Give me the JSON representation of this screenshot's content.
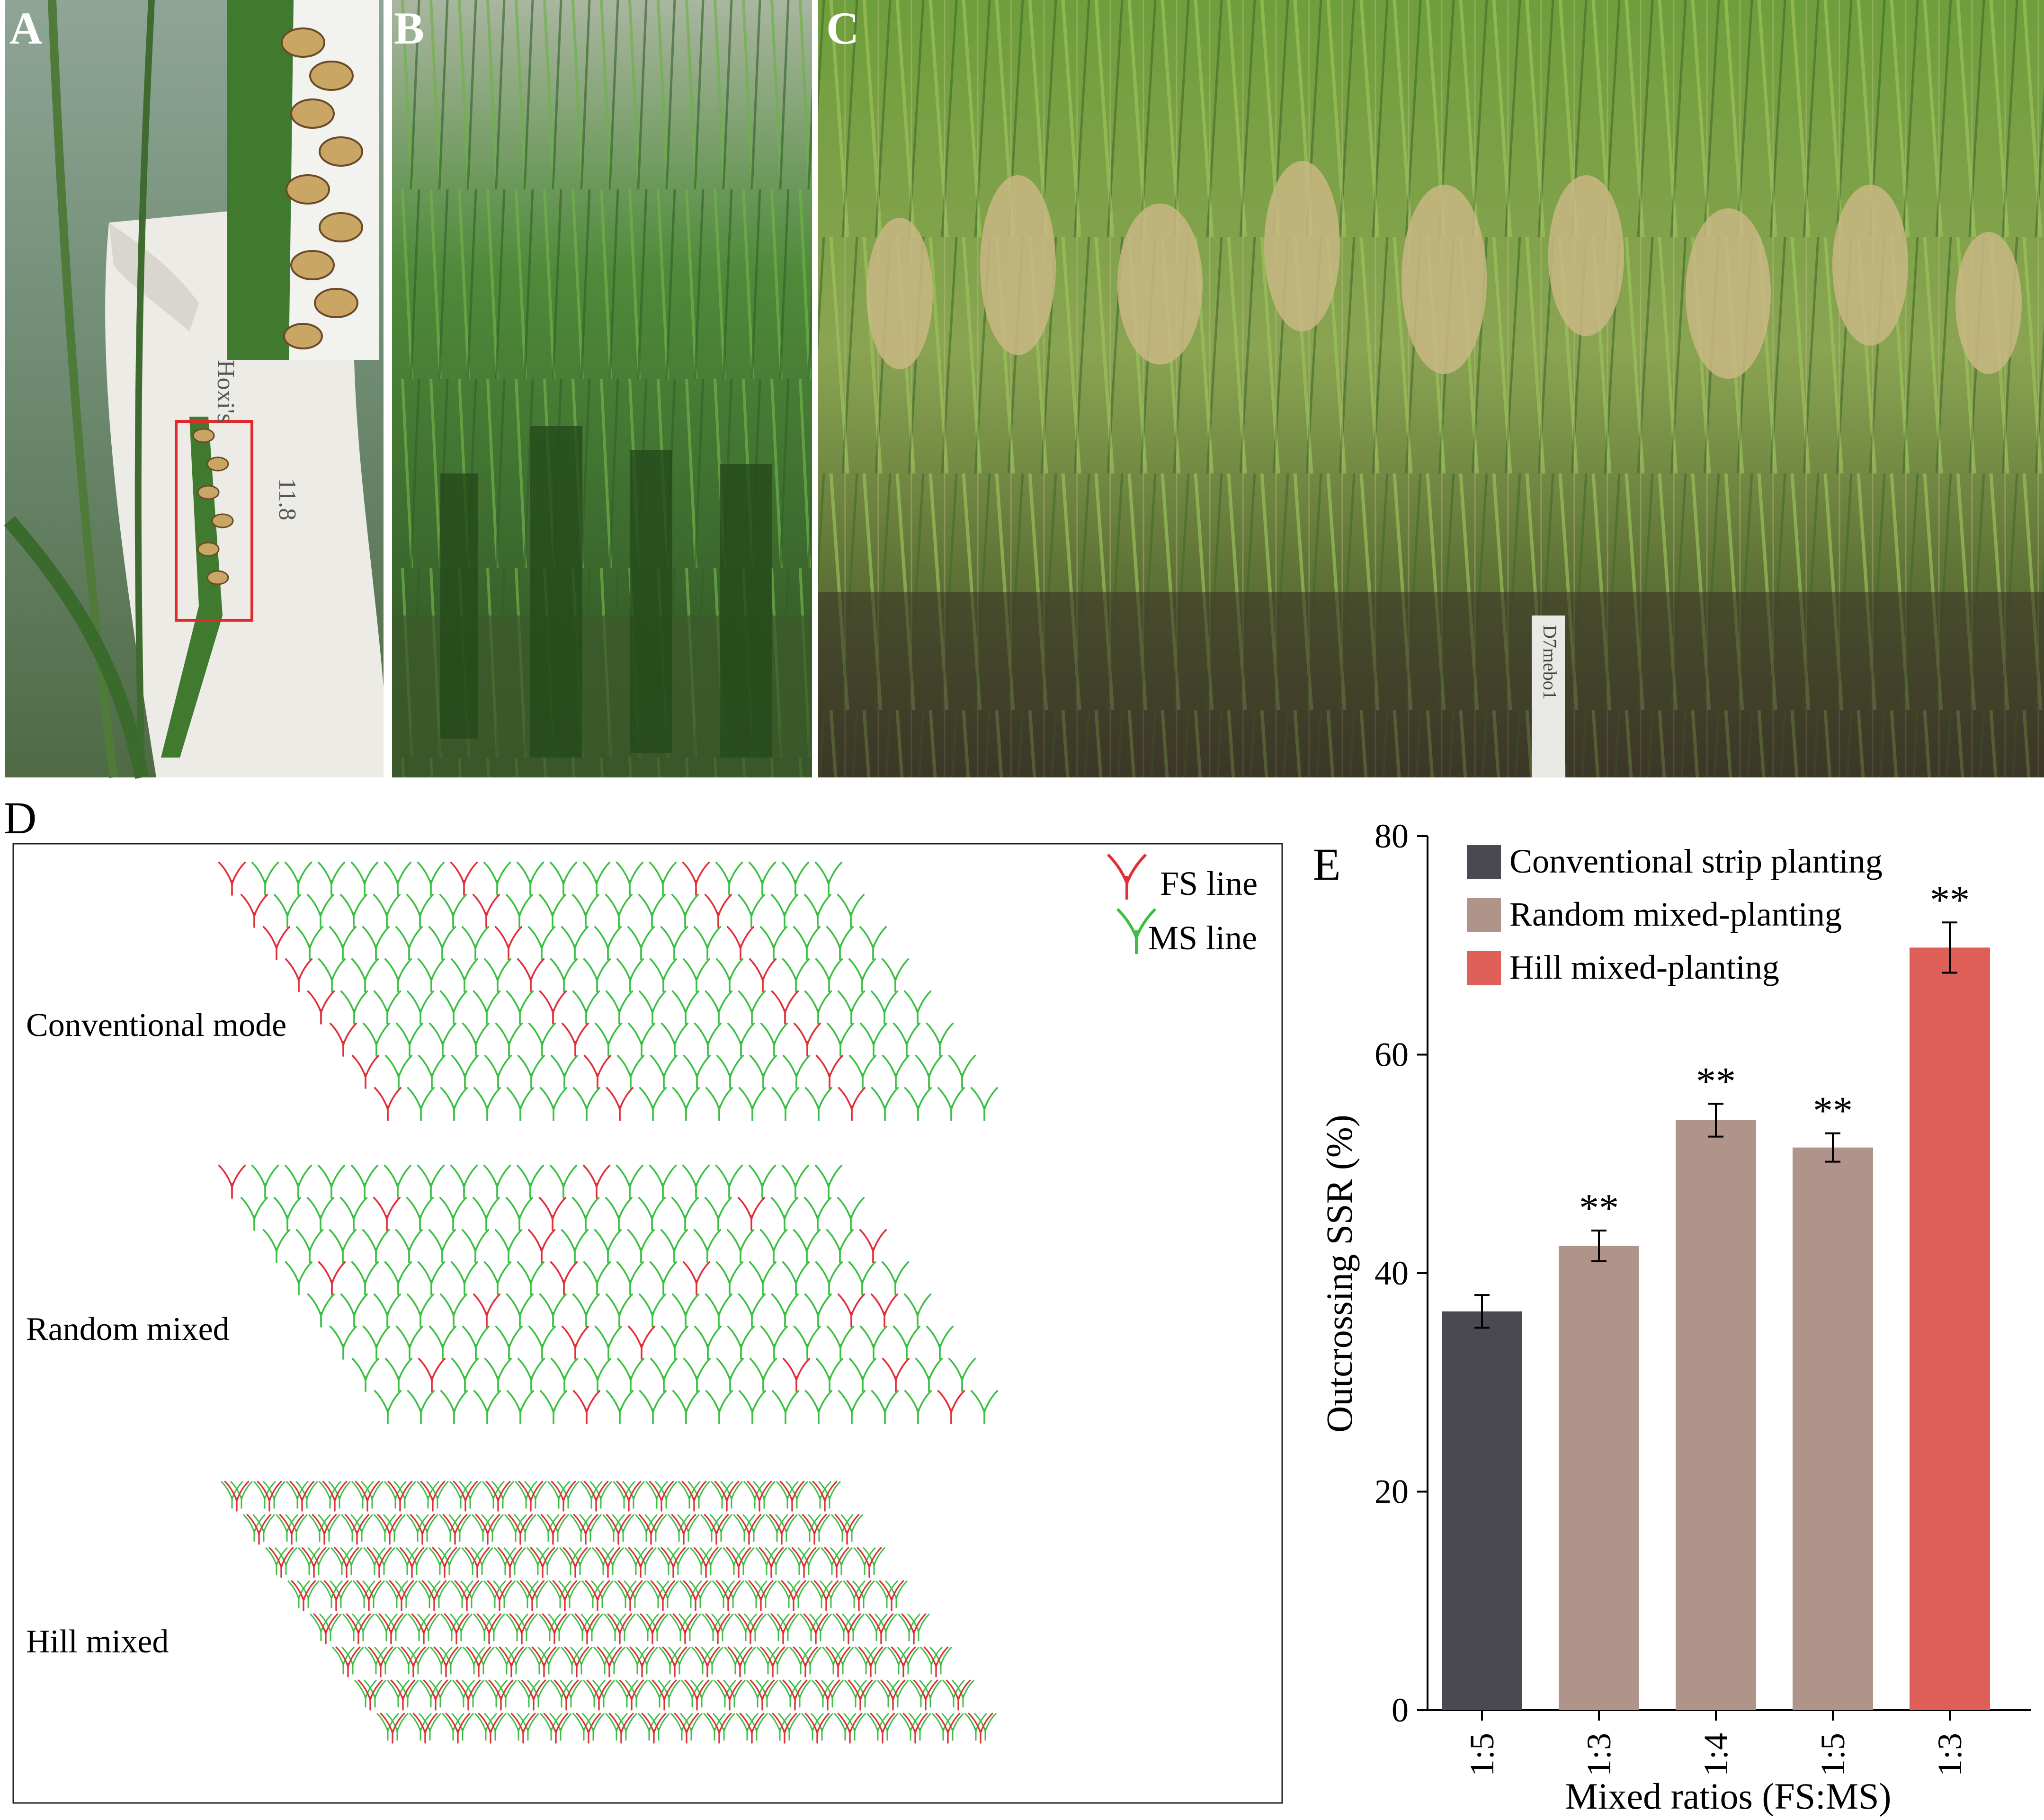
{
  "panels": {
    "a": "A",
    "b": "B",
    "c": "C",
    "d": "D",
    "e": "E"
  },
  "photo_a": {
    "note1": "11.8",
    "note2": "Hoxi's",
    "colors": {
      "bag": "#ecebe6",
      "leaf": "#3f7a2e",
      "box": "#e02a2a"
    }
  },
  "photo_c": {
    "stake_label": "D7mebo1"
  },
  "panel_d": {
    "legend": {
      "fs": "FS line",
      "ms": "MS line"
    },
    "rows": {
      "conventional": "Conventional mode",
      "random": "Random mixed",
      "hill": "Hill mixed"
    },
    "colors": {
      "fs": "#e0303a",
      "ms": "#3cc043"
    }
  },
  "chart_data": {
    "type": "bar",
    "categories": [
      "1:5",
      "1:3",
      "1:4",
      "1:5",
      "1:3"
    ],
    "values": [
      36.5,
      42.5,
      54.0,
      51.5,
      69.8
    ],
    "errors": [
      1.5,
      1.4,
      1.5,
      1.3,
      2.3
    ],
    "series_of_bar": [
      0,
      1,
      1,
      1,
      2
    ],
    "significance": [
      "",
      "**",
      "**",
      "**",
      "**"
    ],
    "legend": [
      {
        "name": "Conventional strip planting",
        "color": "#4a4850"
      },
      {
        "name": "Random mixed-planting",
        "color": "#b09389"
      },
      {
        "name": "Hill mixed-planting",
        "color": "#dd5f58"
      }
    ],
    "yticks": [
      0,
      20,
      40,
      60,
      80
    ],
    "ylim": [
      0,
      80
    ],
    "xlabel": "Mixed ratios (FS:MS)",
    "ylabel": "Outcrossing SSR (%)",
    "legend_position": "top-left"
  }
}
